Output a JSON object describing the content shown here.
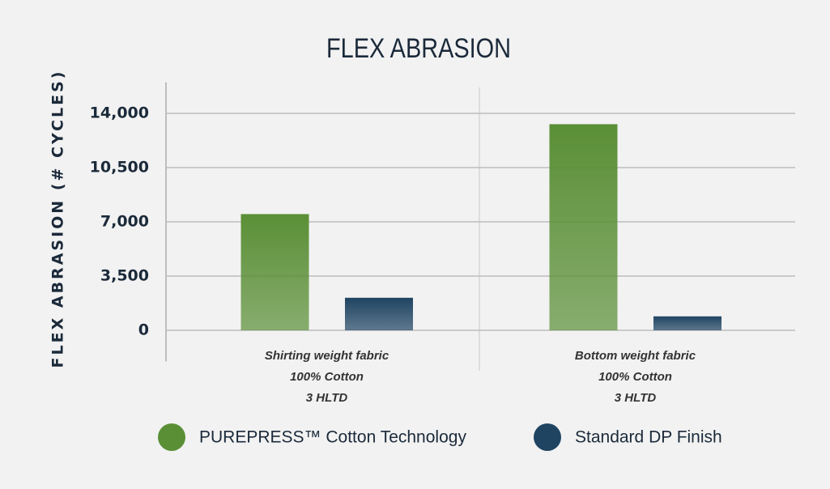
{
  "chart_data": {
    "type": "bar",
    "title": "FLEX ABRASION",
    "y_label": "FLEX ABRASION (# CYCLES)",
    "categories": [
      [
        "Shirting weight fabric",
        "100% Cotton",
        "3 HLTD"
      ],
      [
        "Bottom weight fabric",
        "100% Cotton",
        "3 HLTD"
      ]
    ],
    "series": [
      {
        "name": "PUREPRESS™ Cotton Technology",
        "color": "#5a8f36",
        "values": [
          7500,
          13300
        ]
      },
      {
        "name": "Standard DP Finish",
        "color": "#1f4462",
        "values": [
          2100,
          900
        ]
      }
    ],
    "ylim": [
      -2000,
      16000
    ],
    "yticks": [
      0,
      {
        "value": 3500,
        "label": "3,500"
      },
      {
        "value": 7000,
        "label": "7,000"
      },
      {
        "value": 10500,
        "label": "10,500"
      },
      {
        "value": 14000,
        "label": "14,000"
      }
    ],
    "grid": true
  }
}
